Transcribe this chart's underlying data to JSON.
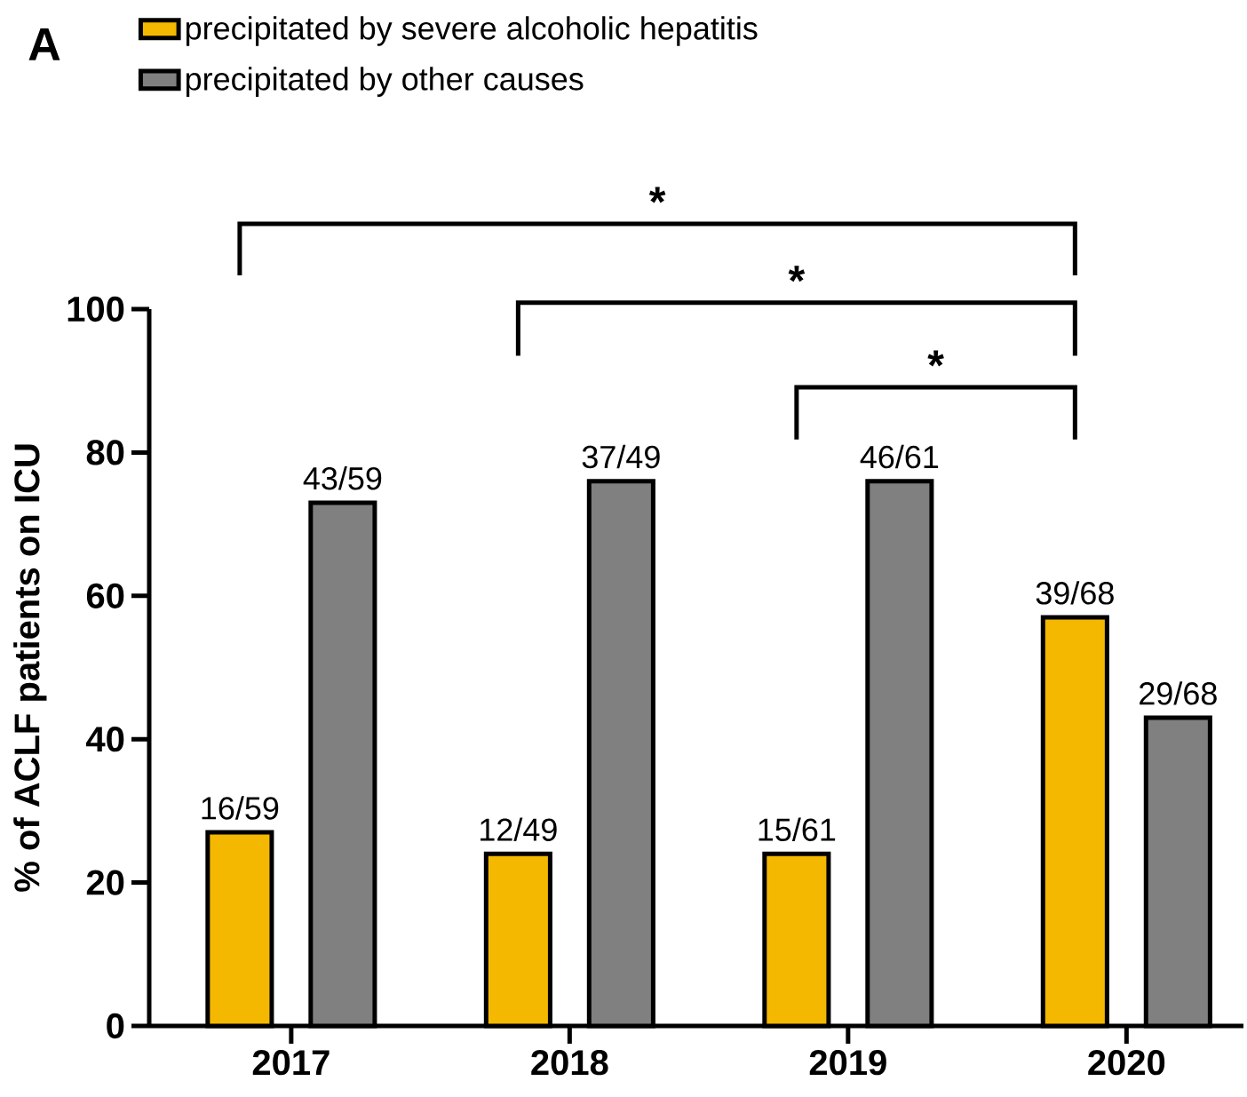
{
  "chart_data": {
    "type": "bar",
    "title": "A",
    "ylabel": "% of ACLF patients on ICU",
    "categories": [
      "2017",
      "2018",
      "2019",
      "2020"
    ],
    "series": [
      {
        "name": "precipitated by severe alcoholic hepatitis",
        "color": "#f5b800",
        "values": [
          27,
          24,
          24,
          57
        ],
        "value_labels": [
          "16/59",
          "12/49",
          "15/61",
          "39/68"
        ]
      },
      {
        "name": "precipitated by other causes",
        "color": "#808080",
        "values": [
          73,
          76,
          76,
          43
        ],
        "value_labels": [
          "43/59",
          "37/49",
          "46/61",
          "29/68"
        ]
      }
    ],
    "ylim": [
      0,
      100
    ],
    "yticks": [
      0,
      20,
      40,
      60,
      80,
      100
    ],
    "legend": "top left",
    "annotations": [
      "*",
      "*",
      "*"
    ]
  }
}
